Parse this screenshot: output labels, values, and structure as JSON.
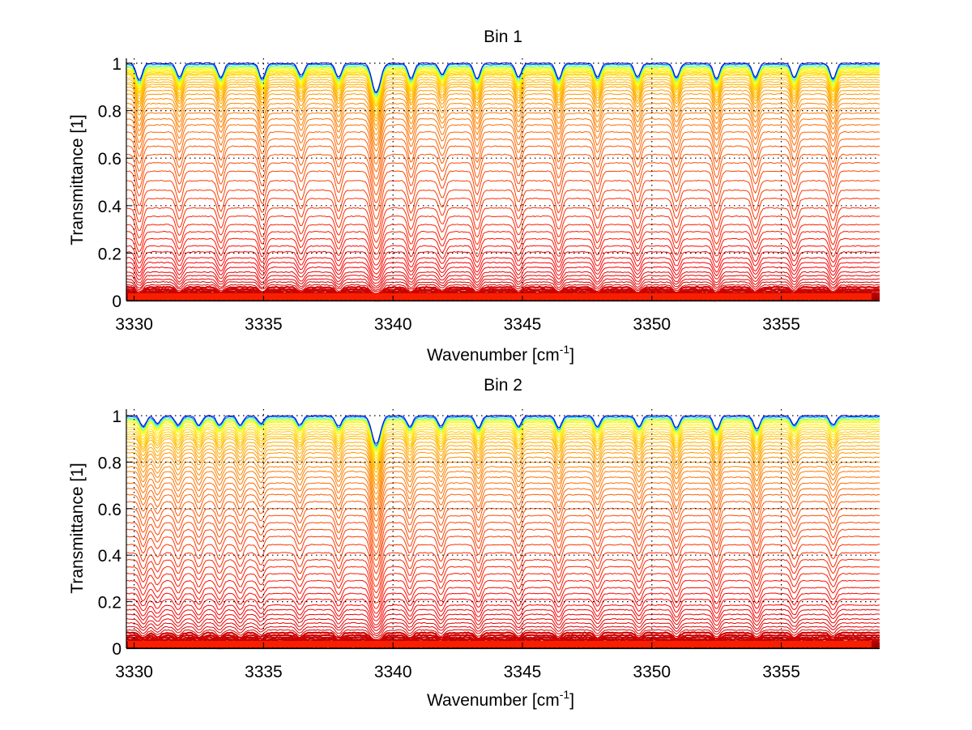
{
  "chart_data": [
    {
      "type": "line",
      "title": "Bin 1",
      "xlabel": "Wavenumber [cm",
      "xlabel_superscript": "-1",
      "xlabel_suffix": "]",
      "ylabel": "Transmittance [1]",
      "xlim": [
        3329.7,
        3358.8
      ],
      "ylim": [
        0,
        1.02
      ],
      "xticks": [
        3330,
        3335,
        3340,
        3345,
        3350,
        3355
      ],
      "xtick_labels": [
        "3330",
        "3335",
        "3340",
        "3345",
        "3350",
        "3355"
      ],
      "yticks": [
        0,
        0.2,
        0.4,
        0.6,
        0.8,
        1
      ],
      "ytick_labels": [
        "0",
        "0.2",
        "0.4",
        "0.6",
        "0.8",
        "1"
      ],
      "grid": "dotted",
      "colormap": "jet",
      "series_count": 60,
      "baseline_levels": [
        1.0,
        0.995,
        0.99,
        0.985,
        0.98,
        0.975,
        0.97,
        0.965,
        0.96,
        0.955,
        0.95,
        0.94,
        0.93,
        0.92,
        0.91,
        0.9,
        0.885,
        0.87,
        0.85,
        0.83,
        0.81,
        0.79,
        0.765,
        0.74,
        0.71,
        0.68,
        0.65,
        0.615,
        0.58,
        0.545,
        0.505,
        0.465,
        0.43,
        0.39,
        0.355,
        0.32,
        0.29,
        0.26,
        0.23,
        0.205,
        0.18,
        0.16,
        0.14,
        0.12,
        0.105,
        0.09,
        0.078,
        0.066,
        0.056,
        0.047,
        0.04,
        0.033,
        0.027,
        0.022,
        0.018,
        0.014,
        0.011,
        0.008,
        0.005,
        0.003
      ],
      "absorption_lines": [
        {
          "center": 3330.2,
          "depth": 0.55
        },
        {
          "center": 3331.75,
          "depth": 0.45
        },
        {
          "center": 3333.35,
          "depth": 0.45
        },
        {
          "center": 3334.95,
          "depth": 0.5
        },
        {
          "center": 3336.45,
          "depth": 0.4
        },
        {
          "center": 3337.9,
          "depth": 0.45
        },
        {
          "center": 3339.35,
          "depth": 1.0
        },
        {
          "center": 3340.7,
          "depth": 0.5
        },
        {
          "center": 3341.9,
          "depth": 0.35
        },
        {
          "center": 3343.25,
          "depth": 0.5
        },
        {
          "center": 3344.85,
          "depth": 0.45
        },
        {
          "center": 3346.4,
          "depth": 0.5
        },
        {
          "center": 3347.9,
          "depth": 0.45
        },
        {
          "center": 3349.45,
          "depth": 0.45
        },
        {
          "center": 3350.95,
          "depth": 0.45
        },
        {
          "center": 3352.5,
          "depth": 0.5
        },
        {
          "center": 3354.0,
          "depth": 0.45
        },
        {
          "center": 3355.5,
          "depth": 0.45
        },
        {
          "center": 3357.0,
          "depth": 0.5
        }
      ]
    },
    {
      "type": "line",
      "title": "Bin 2",
      "xlabel": "Wavenumber [cm",
      "xlabel_superscript": "-1",
      "xlabel_suffix": "]",
      "ylabel": "Transmittance [1]",
      "xlim": [
        3329.7,
        3358.8
      ],
      "ylim": [
        0,
        1.03
      ],
      "xticks": [
        3330,
        3335,
        3340,
        3345,
        3350,
        3355
      ],
      "xtick_labels": [
        "3330",
        "3335",
        "3340",
        "3345",
        "3350",
        "3355"
      ],
      "yticks": [
        0,
        0.2,
        0.4,
        0.6,
        0.8,
        1
      ],
      "ytick_labels": [
        "0",
        "0.2",
        "0.4",
        "0.6",
        "0.8",
        "1"
      ],
      "grid": "dotted",
      "colormap": "jet",
      "series_count": 60,
      "baseline_levels": [
        1.0,
        0.995,
        0.99,
        0.985,
        0.98,
        0.975,
        0.97,
        0.96,
        0.95,
        0.94,
        0.93,
        0.92,
        0.91,
        0.9,
        0.885,
        0.87,
        0.855,
        0.84,
        0.82,
        0.8,
        0.78,
        0.76,
        0.735,
        0.71,
        0.685,
        0.66,
        0.63,
        0.6,
        0.57,
        0.54,
        0.51,
        0.48,
        0.445,
        0.41,
        0.38,
        0.35,
        0.32,
        0.29,
        0.26,
        0.235,
        0.21,
        0.185,
        0.165,
        0.145,
        0.125,
        0.108,
        0.092,
        0.078,
        0.066,
        0.055,
        0.046,
        0.038,
        0.031,
        0.025,
        0.02,
        0.016,
        0.012,
        0.009,
        0.006,
        0.003
      ],
      "absorption_lines": [
        {
          "center": 3330.35,
          "depth": 0.35
        },
        {
          "center": 3330.9,
          "depth": 0.25
        },
        {
          "center": 3331.7,
          "depth": 0.3
        },
        {
          "center": 3332.5,
          "depth": 0.3
        },
        {
          "center": 3333.3,
          "depth": 0.3
        },
        {
          "center": 3334.1,
          "depth": 0.3
        },
        {
          "center": 3334.9,
          "depth": 0.25
        },
        {
          "center": 3336.4,
          "depth": 0.3
        },
        {
          "center": 3337.9,
          "depth": 0.35
        },
        {
          "center": 3339.35,
          "depth": 1.0
        },
        {
          "center": 3340.65,
          "depth": 0.35
        },
        {
          "center": 3341.85,
          "depth": 0.35
        },
        {
          "center": 3343.3,
          "depth": 0.4
        },
        {
          "center": 3344.85,
          "depth": 0.35
        },
        {
          "center": 3346.4,
          "depth": 0.4
        },
        {
          "center": 3347.9,
          "depth": 0.35
        },
        {
          "center": 3349.5,
          "depth": 0.35
        },
        {
          "center": 3350.95,
          "depth": 0.4
        },
        {
          "center": 3352.5,
          "depth": 0.45
        },
        {
          "center": 3354.05,
          "depth": 0.45
        },
        {
          "center": 3355.5,
          "depth": 0.3
        },
        {
          "center": 3357.0,
          "depth": 0.3
        }
      ]
    }
  ]
}
